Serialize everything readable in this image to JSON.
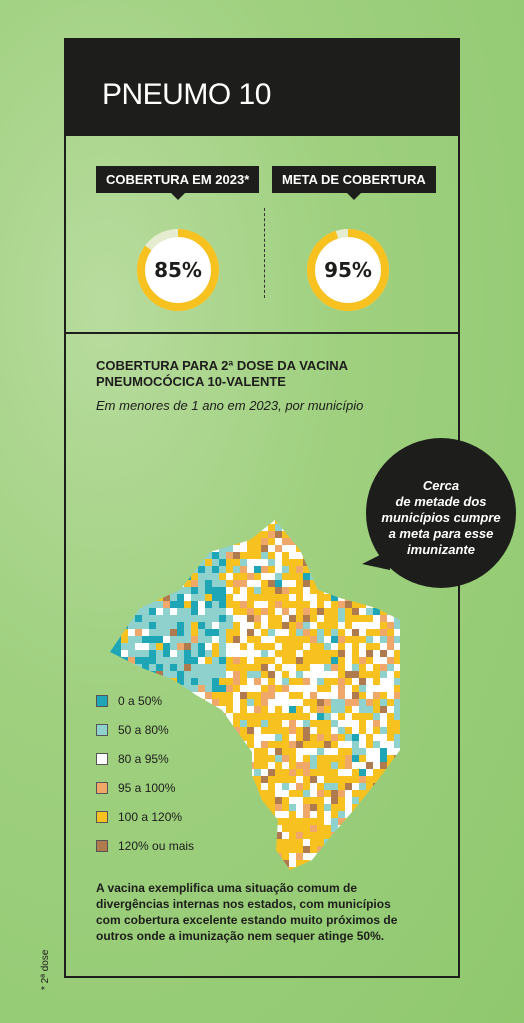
{
  "header": {
    "title": "PNEUMO 10"
  },
  "kpis": [
    {
      "label": "COBERTURA EM 2023*",
      "value_text": "85%",
      "value": 85
    },
    {
      "label": "META DE COBERTURA",
      "value_text": "95%",
      "value": 95
    }
  ],
  "section": {
    "title_line1": "COBERTURA PARA 2ª DOSE DA VACINA",
    "title_line2": "PNEUMOCÓCICA 10-VALENTE",
    "subtitle": "Em menores de 1 ano em 2023, por município"
  },
  "callout": {
    "line1": "Cerca",
    "line2": "de metade dos",
    "line3": "municípios cumpre",
    "line4": "a meta para esse",
    "line5": "imunizante"
  },
  "chart_data": {
    "type": "heatmap",
    "title": "COBERTURA PARA 2ª DOSE DA VACINA PNEUMOCÓCICA 10-VALENTE",
    "subtitle": "Em menores de 1 ano em 2023, por município",
    "legend": [
      {
        "label": "0 a 50%",
        "color": "#1ea6b7"
      },
      {
        "label": "50 a 80%",
        "color": "#8fd1cc"
      },
      {
        "label": "80 a 95%",
        "color": "#ffffff"
      },
      {
        "label": "95 a 100%",
        "color": "#f0a86a"
      },
      {
        "label": "100 a 120%",
        "color": "#f7c11f"
      },
      {
        "label": "120% ou mais",
        "color": "#b07a4f"
      }
    ],
    "legend_position": "bottom-left"
  },
  "colors": {
    "accent_yellow": "#f7c11f",
    "donut_remainder": "#e6ecd0",
    "dark": "#1d1d1b"
  },
  "note": {
    "line1": "A vacina exemplifica uma situação comum de",
    "line2": "divergências internas nos estados, com municípios",
    "line3": "com cobertura excelente estando muito próximos de",
    "line4": "outros onde a imunização nem sequer atinge 50%."
  },
  "footnote": "* 2ª dose"
}
